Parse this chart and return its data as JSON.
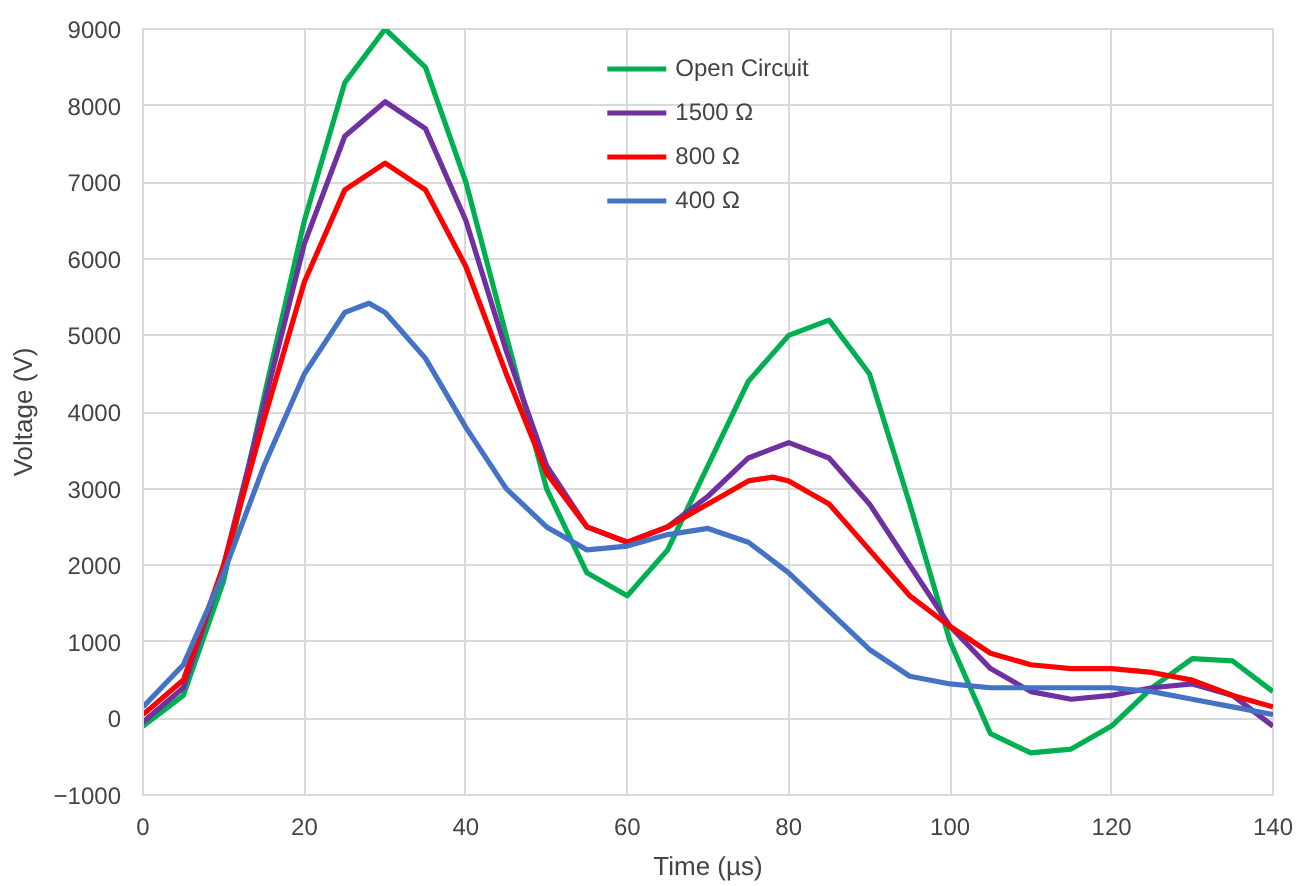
{
  "chart_data": {
    "type": "line",
    "xlabel": "Time (µs)",
    "ylabel": "Voltage (V)",
    "xlim": [
      0,
      140
    ],
    "xticks": [
      0,
      20,
      40,
      60,
      80,
      100,
      120,
      140
    ],
    "ylim": [
      -1000,
      9000
    ],
    "yticks": [
      -1000,
      0,
      1000,
      2000,
      3000,
      4000,
      5000,
      6000,
      7000,
      8000,
      9000
    ],
    "grid": true,
    "legend": "top",
    "marker": "none",
    "line_style": "solid",
    "series": [
      {
        "name": "Open Circuit",
        "color": "#00b050",
        "x": [
          0,
          5,
          10,
          15,
          20,
          25,
          30,
          35,
          40,
          45,
          50,
          55,
          60,
          65,
          70,
          75,
          80,
          85,
          90,
          95,
          100,
          105,
          110,
          115,
          120,
          125,
          130,
          135,
          140
        ],
        "values": [
          -100,
          300,
          1800,
          4200,
          6500,
          8300,
          9000,
          8500,
          7000,
          5000,
          3000,
          1900,
          1600,
          2200,
          3300,
          4400,
          5000,
          5200,
          4500,
          2800,
          1000,
          -200,
          -450,
          -400,
          -100,
          400,
          780,
          750,
          350
        ]
      },
      {
        "name": "1500 Ω",
        "color": "#7030a0",
        "x": [
          0,
          5,
          10,
          15,
          20,
          25,
          30,
          35,
          40,
          45,
          50,
          55,
          60,
          65,
          70,
          75,
          80,
          85,
          90,
          95,
          100,
          105,
          110,
          115,
          120,
          125,
          130,
          135,
          140
        ],
        "values": [
          -50,
          400,
          2000,
          4100,
          6200,
          7600,
          8050,
          7700,
          6500,
          4800,
          3300,
          2500,
          2300,
          2500,
          2900,
          3400,
          3600,
          3400,
          2800,
          2000,
          1200,
          650,
          350,
          250,
          300,
          400,
          450,
          300,
          -100
        ]
      },
      {
        "name": "800 Ω",
        "color": "#ff0000",
        "x": [
          0,
          5,
          10,
          15,
          20,
          25,
          30,
          35,
          40,
          45,
          50,
          55,
          60,
          65,
          70,
          75,
          78,
          80,
          85,
          90,
          95,
          100,
          105,
          110,
          115,
          120,
          125,
          130,
          135,
          140
        ],
        "values": [
          50,
          500,
          2000,
          3900,
          5700,
          6900,
          7250,
          6900,
          5900,
          4500,
          3200,
          2500,
          2300,
          2500,
          2800,
          3100,
          3150,
          3100,
          2800,
          2200,
          1600,
          1200,
          850,
          700,
          650,
          650,
          600,
          500,
          300,
          150
        ]
      },
      {
        "name": "400 Ω",
        "color": "#4472c4",
        "x": [
          0,
          5,
          10,
          15,
          20,
          25,
          28,
          30,
          35,
          40,
          45,
          50,
          55,
          60,
          65,
          70,
          75,
          80,
          85,
          90,
          95,
          100,
          105,
          110,
          115,
          120,
          125,
          130,
          135,
          140
        ],
        "values": [
          150,
          700,
          1900,
          3300,
          4500,
          5300,
          5420,
          5300,
          4700,
          3800,
          3000,
          2500,
          2200,
          2250,
          2400,
          2480,
          2300,
          1900,
          1400,
          900,
          550,
          450,
          400,
          400,
          400,
          400,
          350,
          250,
          150,
          50
        ]
      }
    ]
  }
}
